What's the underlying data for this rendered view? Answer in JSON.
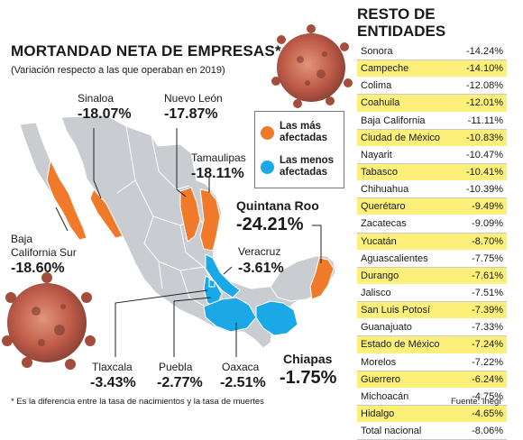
{
  "title": "MORTANDAD NETA DE EMPRESAS*",
  "subtitle": "(Variación respecto a las que operaban en 2019)",
  "legend": {
    "most": {
      "label": "Las más afectadas",
      "color": "#f07a2a"
    },
    "least": {
      "label": "Las menos afectadas",
      "color": "#1ba8e6"
    }
  },
  "map_labels": {
    "sinaloa": {
      "name": "Sinaloa",
      "value": "-18.07%"
    },
    "nuevo_leon": {
      "name": "Nuevo León",
      "value": "-17.87%"
    },
    "tamaulipas": {
      "name": "Tamaulipas",
      "value": "-18.11%"
    },
    "quintana_roo": {
      "name": "Quintana Roo",
      "value": "-24.21%"
    },
    "veracruz": {
      "name": "Veracruz",
      "value": "-3.61%"
    },
    "baja_california_sur": {
      "name_line1": "Baja",
      "name_line2": "California Sur",
      "value": "-18.60%"
    },
    "tlaxcala": {
      "name": "Tlaxcala",
      "value": "-3.43%"
    },
    "puebla": {
      "name": "Puebla",
      "value": "-2.77%"
    },
    "oaxaca": {
      "name": "Oaxaca",
      "value": "-2.51%"
    },
    "chiapas": {
      "name": "Chiapas",
      "value": "-1.75%"
    }
  },
  "resto": {
    "title_line1": "RESTO DE",
    "title_line2": "ENTIDADES",
    "rows": [
      {
        "name": "Sonora",
        "value": "-14.24%",
        "highlight": false
      },
      {
        "name": "Campeche",
        "value": "-14.10%",
        "highlight": true
      },
      {
        "name": "Colima",
        "value": "-12.08%",
        "highlight": false
      },
      {
        "name": "Coahuila",
        "value": "-12.01%",
        "highlight": true
      },
      {
        "name": "Baja California",
        "value": "-11.11%",
        "highlight": false
      },
      {
        "name": "Ciudad de México",
        "value": "-10.83%",
        "highlight": true
      },
      {
        "name": "Nayarit",
        "value": "-10.47%",
        "highlight": false
      },
      {
        "name": "Tabasco",
        "value": "-10.41%",
        "highlight": true
      },
      {
        "name": "Chihuahua",
        "value": "-10.39%",
        "highlight": false
      },
      {
        "name": "Querétaro",
        "value": "-9.49%",
        "highlight": true
      },
      {
        "name": "Zacatecas",
        "value": "-9.09%",
        "highlight": false
      },
      {
        "name": "Yucatán",
        "value": "-8.70%",
        "highlight": true
      },
      {
        "name": "Aguascalientes",
        "value": "-7.75%",
        "highlight": false
      },
      {
        "name": "Durango",
        "value": "-7.61%",
        "highlight": true
      },
      {
        "name": "Jalisco",
        "value": "-7.51%",
        "highlight": false
      },
      {
        "name": "San Luis Potosí",
        "value": "-7.39%",
        "highlight": true
      },
      {
        "name": "Guanajuato",
        "value": "-7.33%",
        "highlight": false
      },
      {
        "name": "Estado de México",
        "value": "-7.24%",
        "highlight": true
      },
      {
        "name": "Morelos",
        "value": "-7.22%",
        "highlight": false
      },
      {
        "name": "Guerrero",
        "value": "-6.24%",
        "highlight": true
      },
      {
        "name": "Michoacán",
        "value": "-4.75%",
        "highlight": false
      },
      {
        "name": "Hidalgo",
        "value": "-4.65%",
        "highlight": true
      },
      {
        "name": "Total nacional",
        "value": "-8.06%",
        "highlight": false
      }
    ]
  },
  "footnote": "* Es la diferencia entre la tasa de nacimientos y la tasa de muertes",
  "source": "Fuente: Inegi",
  "colors": {
    "map_base": "#c9cdd2",
    "highlight_row": "#fdf07a",
    "virus": "#b84a35"
  }
}
